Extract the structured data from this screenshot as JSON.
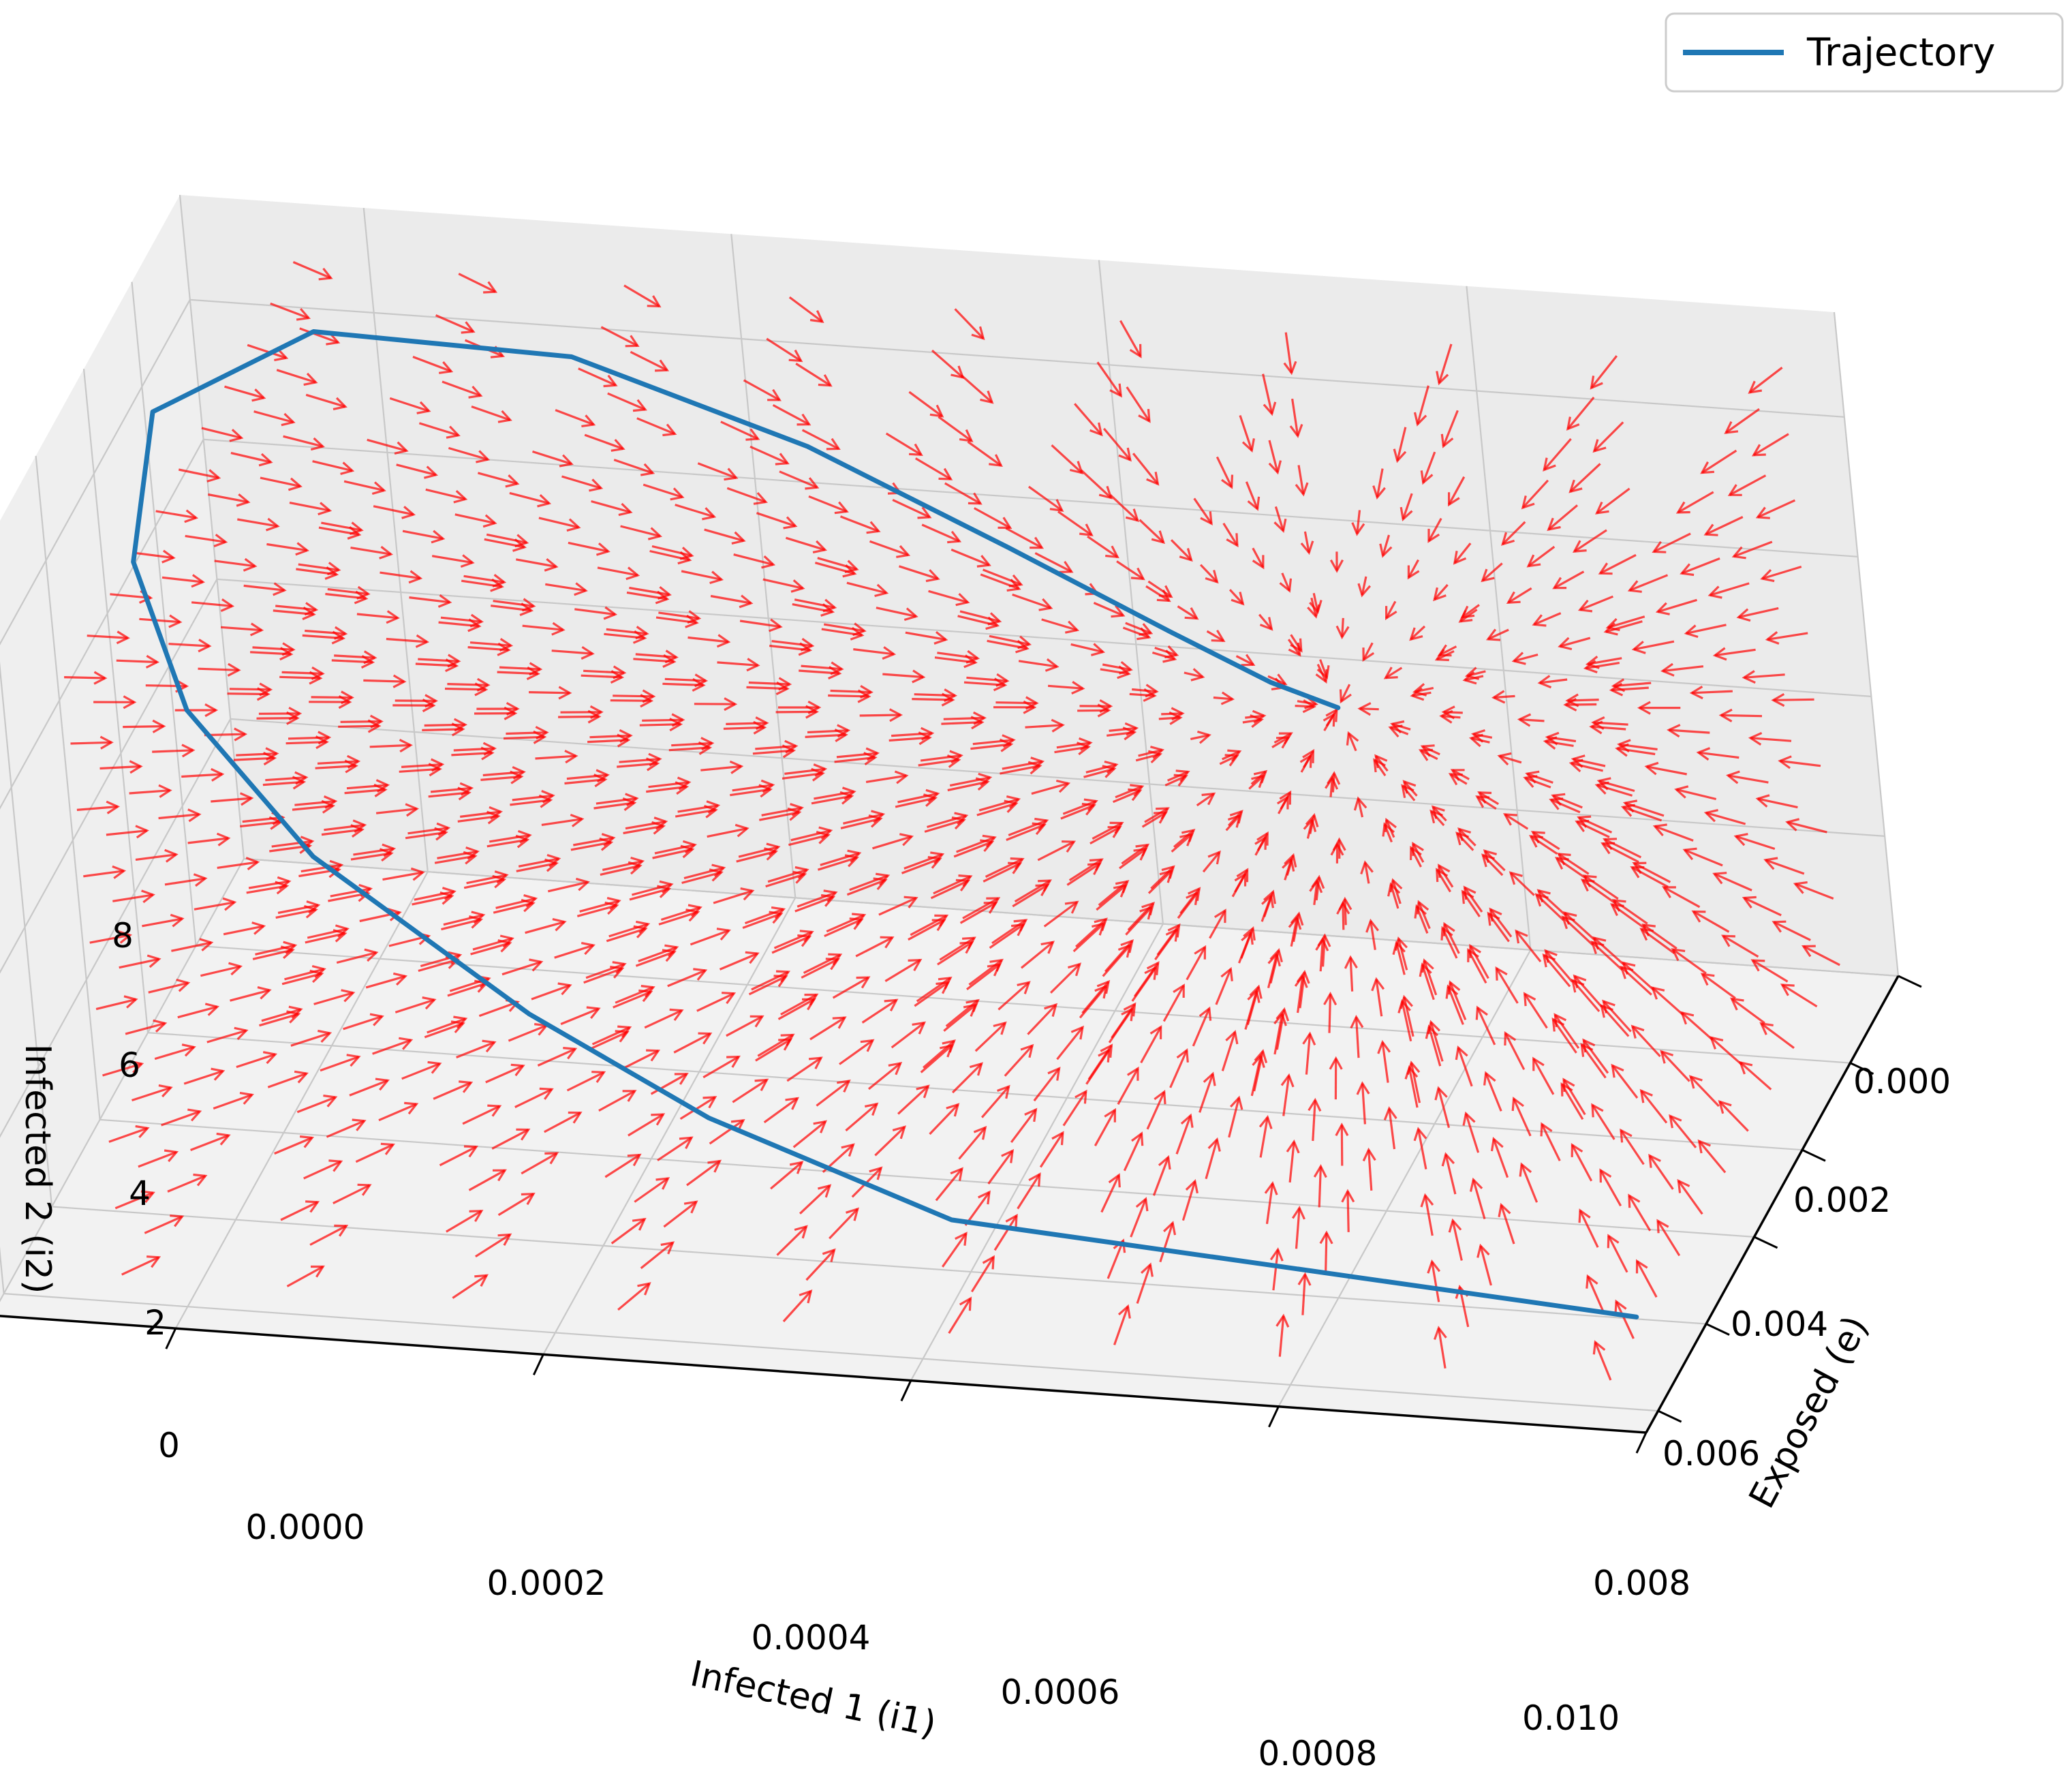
{
  "chart_data": {
    "type": "quiver3d",
    "title": "",
    "legend": {
      "placement": "top-right",
      "entries": [
        {
          "label": "Trajectory",
          "color": "#1f77b4"
        }
      ]
    },
    "axes": {
      "x": {
        "label": "Infected 1 (i1)",
        "range": [
          0,
          0.0009
        ],
        "ticks": [
          0,
          0.0002,
          0.0004,
          0.0006,
          0.0008
        ],
        "tick_labels": [
          "0.0000",
          "0.0002",
          "0.0004",
          "0.0006",
          "0.0008"
        ]
      },
      "y": {
        "label": "Exposed (e)",
        "range": [
          0,
          0.0105
        ],
        "ticks": [
          0,
          0.002,
          0.004,
          0.006,
          0.008,
          0.01
        ],
        "tick_labels": [
          "0.000",
          "0.002",
          "0.004",
          "0.006",
          "0.008",
          "0.010"
        ]
      },
      "z": {
        "label": "Infected 2 (i2)",
        "range": [
          0,
          9.5
        ],
        "ticks": [
          0,
          2,
          4,
          6,
          8
        ],
        "tick_labels": [
          "0",
          "2",
          "4",
          "6",
          "8"
        ]
      }
    },
    "grid": true,
    "quiver_color": "#ff0000",
    "series": [
      {
        "name": "Trajectory",
        "color": "#1f77b4",
        "points": [
          {
            "i1": 1e-05,
            "e": 0.0098,
            "i2": 1.2
          },
          {
            "i1": 0.00038,
            "e": 0.0098,
            "i2": 1.9
          },
          {
            "i1": 0.00052,
            "e": 0.009,
            "i2": 2.6
          },
          {
            "i1": 0.00063,
            "e": 0.0079,
            "i2": 3.2
          },
          {
            "i1": 0.00076,
            "e": 0.0066,
            "i2": 4.4
          },
          {
            "i1": 0.00084,
            "e": 0.0054,
            "i2": 5.6
          },
          {
            "i1": 0.00088,
            "e": 0.0042,
            "i2": 6.9
          },
          {
            "i1": 0.00088,
            "e": 0.003,
            "i2": 8.3
          },
          {
            "i1": 0.0008,
            "e": 0.0022,
            "i2": 9.1
          },
          {
            "i1": 0.00066,
            "e": 0.0022,
            "i2": 9.0
          },
          {
            "i1": 0.00052,
            "e": 0.0032,
            "i2": 8.6
          },
          {
            "i1": 0.0004,
            "e": 0.0042,
            "i2": 8.0
          },
          {
            "i1": 0.0003,
            "e": 0.0052,
            "i2": 7.6
          },
          {
            "i1": 0.00024,
            "e": 0.0057,
            "i2": 7.3
          },
          {
            "i1": 0.0002,
            "e": 0.006,
            "i2": 7.2
          }
        ]
      }
    ],
    "focus_point": {
      "i1": 0.0002,
      "e": 0.006,
      "i2": 7.2
    }
  }
}
